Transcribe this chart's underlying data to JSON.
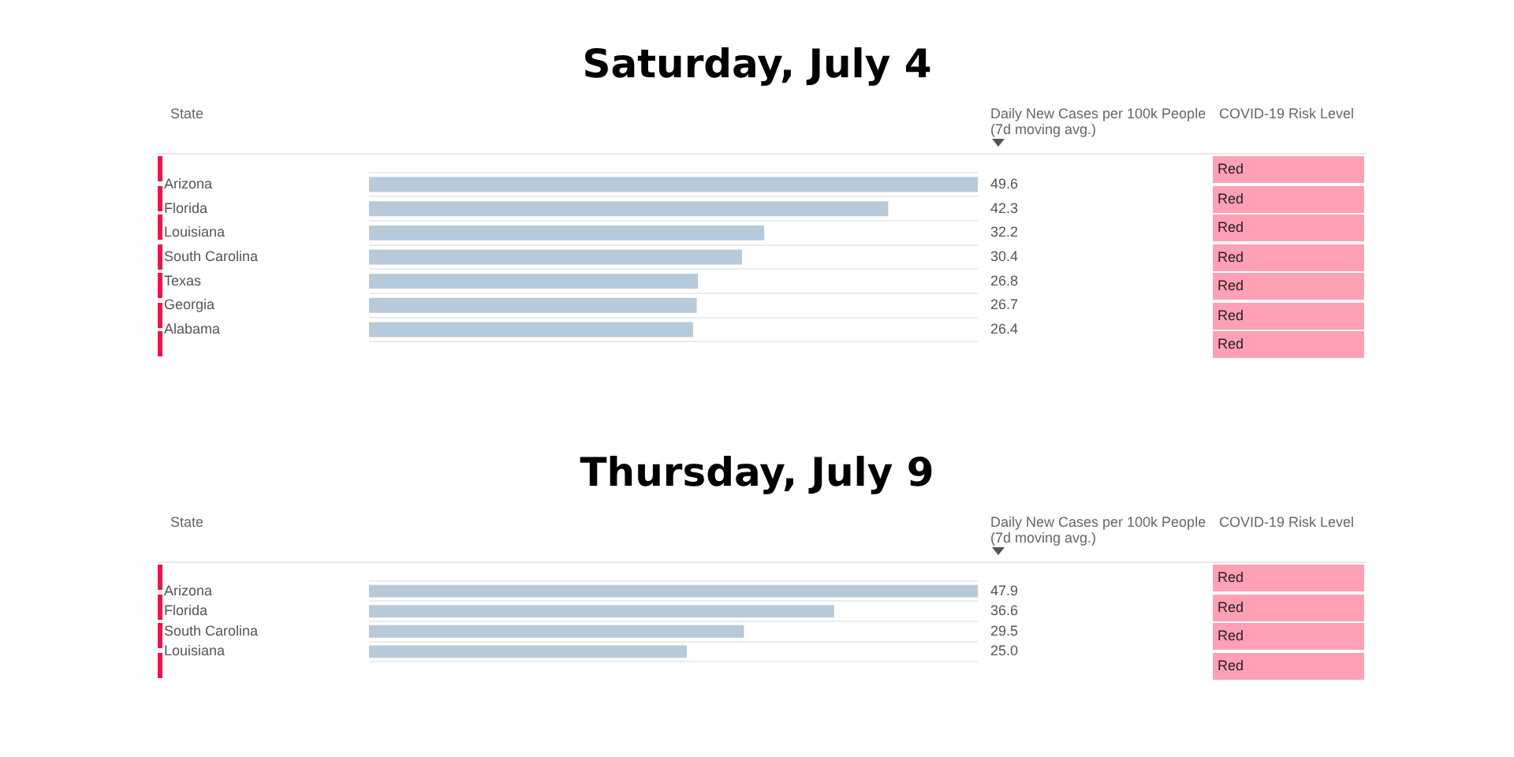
{
  "chart_data": [
    {
      "type": "bar",
      "orientation": "horizontal",
      "title": "Saturday, July 4",
      "ylabel": "State",
      "xlabel": "Daily New Cases per 100k People (7d moving avg.)",
      "categories": [
        "Arizona",
        "Florida",
        "Louisiana",
        "South Carolina",
        "Texas",
        "Georgia",
        "Alabama"
      ],
      "values": [
        49.6,
        42.3,
        32.2,
        30.4,
        26.8,
        26.7,
        26.4
      ],
      "value_labels": [
        "49.6",
        "42.3",
        "32.2",
        "30.4",
        "26.8",
        "26.7",
        "26.4"
      ],
      "color": "#b7cad9",
      "grid": "y",
      "annotations": [
        "COVID-19 Risk Level",
        "Red",
        "Red",
        "Red",
        "Red",
        "Red",
        "Red",
        "Red"
      ]
    },
    {
      "type": "bar",
      "orientation": "horizontal",
      "title": "Thursday, July 9",
      "ylabel": "State",
      "xlabel": "Daily New Cases per 100k People (7d moving avg.)",
      "categories": [
        "Arizona",
        "Florida",
        "South Carolina",
        "Louisiana"
      ],
      "values": [
        47.9,
        36.6,
        29.5,
        25.0
      ],
      "value_labels": [
        "47.9",
        "36.6",
        "29.5",
        "25.0"
      ],
      "color": "#b7cad9",
      "grid": "y",
      "annotations": [
        "COVID-19 Risk Level",
        "Red",
        "Red",
        "Red",
        "Red"
      ]
    }
  ]
}
